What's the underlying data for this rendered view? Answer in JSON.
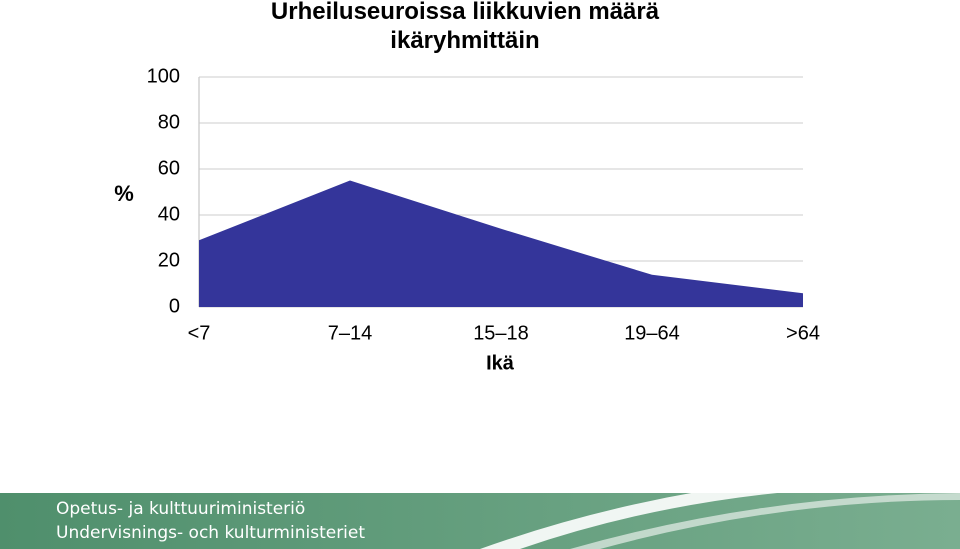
{
  "chart_data": {
    "type": "area",
    "title": "Urheiluseuroissa liikkuvien määrä ikäryhmittäin",
    "y_label": "%",
    "x_label": "Ikä",
    "categories": [
      "<7",
      "7–14",
      "15–18",
      "19–64",
      ">64"
    ],
    "values": [
      29,
      55,
      34,
      14,
      6
    ],
    "color": "#34359a",
    "ylim": [
      0,
      100
    ],
    "yticks": [
      0,
      20,
      40,
      60,
      80,
      100
    ],
    "grid": true
  },
  "footer": {
    "lines": [
      "Opetus- ja kulttuuriministeriö",
      "Undervisnings- och kulturministeriet"
    ]
  }
}
